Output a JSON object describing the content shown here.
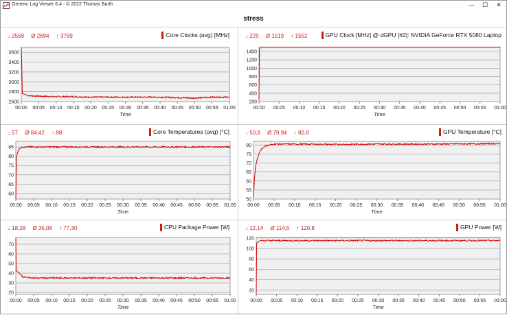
{
  "window": {
    "title": "Generic Log Viewer 6.4 - © 2022 Thomas Barth",
    "min": "—",
    "max": "☐",
    "close": "✕"
  },
  "header": {
    "title": "stress"
  },
  "colors": {
    "series": "#d40000",
    "plot_bg": "#f0f0f0",
    "grid": "#a0a0a0"
  },
  "panels": [
    {
      "title": "Core Clocks (avg) [MHz]",
      "stats": {
        "min": "↓ 2569",
        "avg": "Ø 2694",
        "max": "↑ 3769"
      }
    },
    {
      "title": "GPU Clock [MHz] @ dGPU [#2]: NVIDIA GeForce RTX 5080 Laptop",
      "stats": {
        "min": "↓ 225",
        "avg": "Ø 1519",
        "max": "↑ 1552"
      }
    },
    {
      "title": "Core Temperatures (avg) [°C]",
      "stats": {
        "min": "↓ 57",
        "avg": "Ø 84,42",
        "max": "↑ 88"
      }
    },
    {
      "title": "GPU Temperature [°C]",
      "stats": {
        "min": "↓ 50,8",
        "avg": "Ø 79,94",
        "max": "↑ 80,8"
      }
    },
    {
      "title": "CPU Package Power [W]",
      "stats": {
        "min": "↓ 18,28",
        "avg": "Ø 35,08",
        "max": "↑ 77,30"
      }
    },
    {
      "title": "GPU Power [W]",
      "stats": {
        "min": "↓ 12,14",
        "avg": "Ø 114,5",
        "max": "↑ 120,8"
      }
    }
  ],
  "chart_data": [
    {
      "type": "line",
      "title": "Core Clocks (avg) [MHz]",
      "xlabel": "Time",
      "ylabel": "",
      "x_ticks": [
        "00:00",
        "00:05",
        "00:10",
        "00:15",
        "00:20",
        "00:25",
        "00:30",
        "00:35",
        "00:40",
        "00:45",
        "00:50",
        "00:55",
        "01:00"
      ],
      "ylim": [
        2600,
        3700
      ],
      "y_ticks": [
        2600,
        2800,
        3000,
        3200,
        3400,
        3600
      ],
      "series": [
        {
          "x": [
            0,
            0.3,
            1,
            2,
            5,
            10,
            15,
            20,
            25,
            30,
            35,
            40,
            45,
            50,
            55,
            60
          ],
          "y": [
            3769,
            2760,
            2750,
            2720,
            2710,
            2700,
            2700,
            2690,
            2690,
            2690,
            2690,
            2690,
            2680,
            2670,
            2690,
            2690
          ]
        }
      ]
    },
    {
      "type": "line",
      "title": "GPU Clock [MHz] @ dGPU [#2]: NVIDIA GeForce RTX 5080 Laptop",
      "xlabel": "Time",
      "ylabel": "",
      "x_ticks": [
        "00:00",
        "00:05",
        "00:10",
        "00:15",
        "00:20",
        "00:25",
        "00:30",
        "00:35",
        "00:40",
        "00:45",
        "00:50",
        "00:55",
        "01:00"
      ],
      "ylim": [
        200,
        1500
      ],
      "y_ticks": [
        200,
        400,
        600,
        800,
        1000,
        1200,
        1400
      ],
      "series": [
        {
          "x": [
            0,
            0.1,
            0.5,
            2,
            10,
            20,
            30,
            40,
            50,
            60
          ],
          "y": [
            225,
            1450,
            1520,
            1520,
            1520,
            1515,
            1520,
            1515,
            1515,
            1520
          ]
        }
      ]
    },
    {
      "type": "line",
      "title": "Core Temperatures (avg) [°C]",
      "xlabel": "Time",
      "ylabel": "",
      "x_ticks": [
        "00:00",
        "00:05",
        "00:10",
        "00:15",
        "00:20",
        "00:25",
        "00:30",
        "00:35",
        "00:40",
        "00:45",
        "00:50",
        "00:55",
        "01:00"
      ],
      "ylim": [
        57,
        88
      ],
      "y_ticks": [
        60,
        65,
        70,
        75,
        80,
        85
      ],
      "series": [
        {
          "x": [
            0,
            0.2,
            0.5,
            1,
            2,
            5,
            10,
            20,
            30,
            40,
            50,
            60
          ],
          "y": [
            57,
            80,
            82,
            84,
            85,
            85,
            85,
            85,
            85,
            85,
            85,
            85
          ]
        }
      ]
    },
    {
      "type": "line",
      "title": "GPU Temperature [°C]",
      "xlabel": "Time",
      "ylabel": "",
      "x_ticks": [
        "00:00",
        "00:05",
        "00:10",
        "00:15",
        "00:20",
        "00:25",
        "00:30",
        "00:35",
        "00:40",
        "00:45",
        "00:50",
        "00:55",
        "01:00"
      ],
      "ylim": [
        50,
        82
      ],
      "y_ticks": [
        50,
        55,
        60,
        65,
        70,
        75,
        80
      ],
      "series": [
        {
          "x": [
            0,
            0.2,
            0.5,
            1,
            1.5,
            2,
            3,
            5,
            10,
            20,
            30,
            40,
            50,
            60
          ],
          "y": [
            50.8,
            60,
            68,
            73,
            76,
            78,
            79.5,
            80.5,
            80.5,
            80.3,
            80.5,
            80.5,
            80.6,
            80.8
          ]
        }
      ]
    },
    {
      "type": "line",
      "title": "CPU Package Power [W]",
      "xlabel": "Time",
      "ylabel": "",
      "x_ticks": [
        "00:00",
        "00:05",
        "00:10",
        "00:15",
        "00:20",
        "00:25",
        "00:30",
        "00:35",
        "00:40",
        "00:45",
        "00:50",
        "00:55",
        "01:00"
      ],
      "ylim": [
        18,
        77
      ],
      "y_ticks": [
        20,
        30,
        40,
        50,
        60,
        70
      ],
      "series": [
        {
          "x": [
            0,
            0.1,
            0.3,
            1,
            1.5,
            2,
            5,
            10,
            20,
            30,
            40,
            50,
            60
          ],
          "y": [
            77.3,
            45,
            42,
            40,
            38,
            36,
            35,
            35,
            35,
            35,
            35,
            35,
            35
          ]
        }
      ]
    },
    {
      "type": "line",
      "title": "GPU Power [W]",
      "xlabel": "Time",
      "ylabel": "",
      "x_ticks": [
        "00:00",
        "00:05",
        "00:10",
        "00:15",
        "00:20",
        "00:25",
        "00:30",
        "00:35",
        "00:40",
        "00:45",
        "00:50",
        "00:55",
        "01:00"
      ],
      "ylim": [
        12,
        121
      ],
      "y_ticks": [
        20,
        40,
        60,
        80,
        100,
        120
      ],
      "series": [
        {
          "x": [
            0,
            0.1,
            0.5,
            1,
            2,
            5,
            10,
            20,
            30,
            40,
            50,
            60
          ],
          "y": [
            12.14,
            110,
            113,
            115,
            115,
            115,
            115,
            115,
            115,
            115,
            115,
            115
          ]
        }
      ]
    }
  ]
}
